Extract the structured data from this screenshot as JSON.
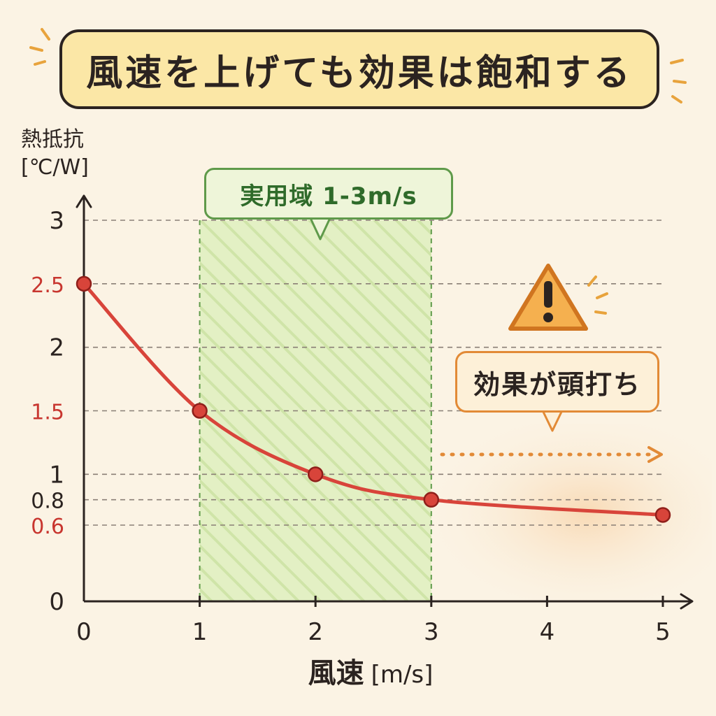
{
  "title": "風速を上げても効果は飽和する",
  "chart_data": {
    "type": "line",
    "title": "風速を上げても効果は飽和する",
    "ylabel_line1": "熱抵抗",
    "ylabel_line2": "[℃/W]",
    "xlabel": "風速",
    "xlabel_unit": "[m/s]",
    "xlim": [
      0,
      5
    ],
    "ylim": [
      0,
      3
    ],
    "x_ticks": [
      "0",
      "1",
      "2",
      "3",
      "4",
      "5"
    ],
    "y_ticks": [
      {
        "label": "0",
        "value": 0,
        "color": "#2b2320"
      },
      {
        "label": "0.6",
        "value": 0.6,
        "color": "#c8362f"
      },
      {
        "label": "0.8",
        "value": 0.8,
        "color": "#2b2320"
      },
      {
        "label": "1",
        "value": 1,
        "color": "#2b2320"
      },
      {
        "label": "1.5",
        "value": 1.5,
        "color": "#c8362f"
      },
      {
        "label": "2",
        "value": 2,
        "color": "#2b2320"
      },
      {
        "label": "2.5",
        "value": 2.5,
        "color": "#c8362f"
      },
      {
        "label": "3",
        "value": 3,
        "color": "#2b2320"
      }
    ],
    "series": [
      {
        "x": [
          0,
          1,
          2,
          3,
          5
        ],
        "y": [
          2.5,
          1.5,
          1.0,
          0.8,
          0.68
        ],
        "color": "#d8443a"
      }
    ],
    "practical_range": {
      "label": "実用域 1-3m/s",
      "x_start": 1,
      "x_end": 3,
      "color": "#cfe7a8"
    },
    "saturation": {
      "label": "効果が頭打ち",
      "x_start": 3,
      "color": "#e28a36"
    },
    "grid": "dashed-horizontal",
    "legend": "none"
  },
  "colors": {
    "background": "#fbf3e4",
    "line": "#d8443a",
    "axis": "#2b2320",
    "band_green": "#5f9a4a",
    "warn_orange": "#e28a36"
  },
  "icons": [
    "warning-icon",
    "arrow-right-icon"
  ]
}
